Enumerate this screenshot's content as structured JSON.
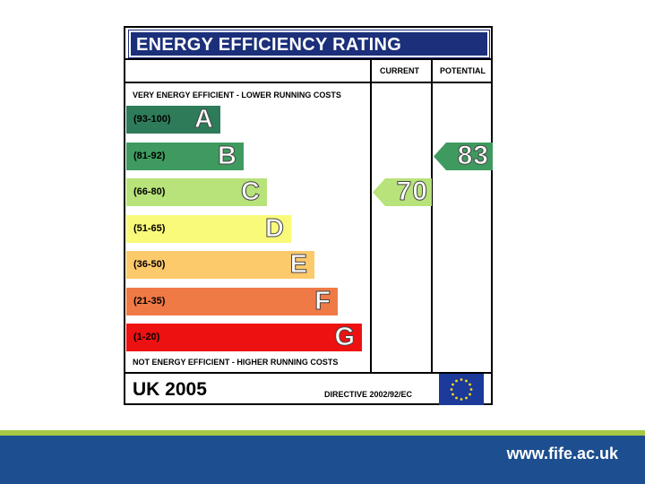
{
  "label": {
    "title": "ENERGY EFFICIENCY RATING",
    "columns": {
      "current": "CURRENT",
      "potential": "POTENTIAL"
    },
    "top_note": "VERY ENERGY EFFICIENT - LOWER RUNNING COSTS",
    "bottom_note": "NOT ENERGY EFFICIENT - HIGHER RUNNING COSTS",
    "bands": [
      {
        "range": "(93-100)",
        "letter": "A",
        "color": "#2e7b5a"
      },
      {
        "range": "(81-92)",
        "letter": "B",
        "color": "#3f9a5f"
      },
      {
        "range": "(66-80)",
        "letter": "C",
        "color": "#b8e27a"
      },
      {
        "range": "(51-65)",
        "letter": "D",
        "color": "#fafa7a"
      },
      {
        "range": "(36-50)",
        "letter": "E",
        "color": "#fcc96b"
      },
      {
        "range": "(21-35)",
        "letter": "F",
        "color": "#f07a45"
      },
      {
        "range": "(1-20)",
        "letter": "G",
        "color": "#ee1111"
      }
    ],
    "current_rating": {
      "value": "70",
      "band": "C",
      "color": "#b8e27a"
    },
    "potential_rating": {
      "value": "83",
      "band": "B",
      "color": "#3f9a5f"
    },
    "footer_left": "UK 2005",
    "footer_directive": "DIRECTIVE 2002/92/EC",
    "flag": "eu-flag-icon"
  },
  "footer": {
    "url": "www.fife.ac.uk",
    "stripe_color": "#a6c845",
    "bar_color": "#1d4e8f"
  }
}
